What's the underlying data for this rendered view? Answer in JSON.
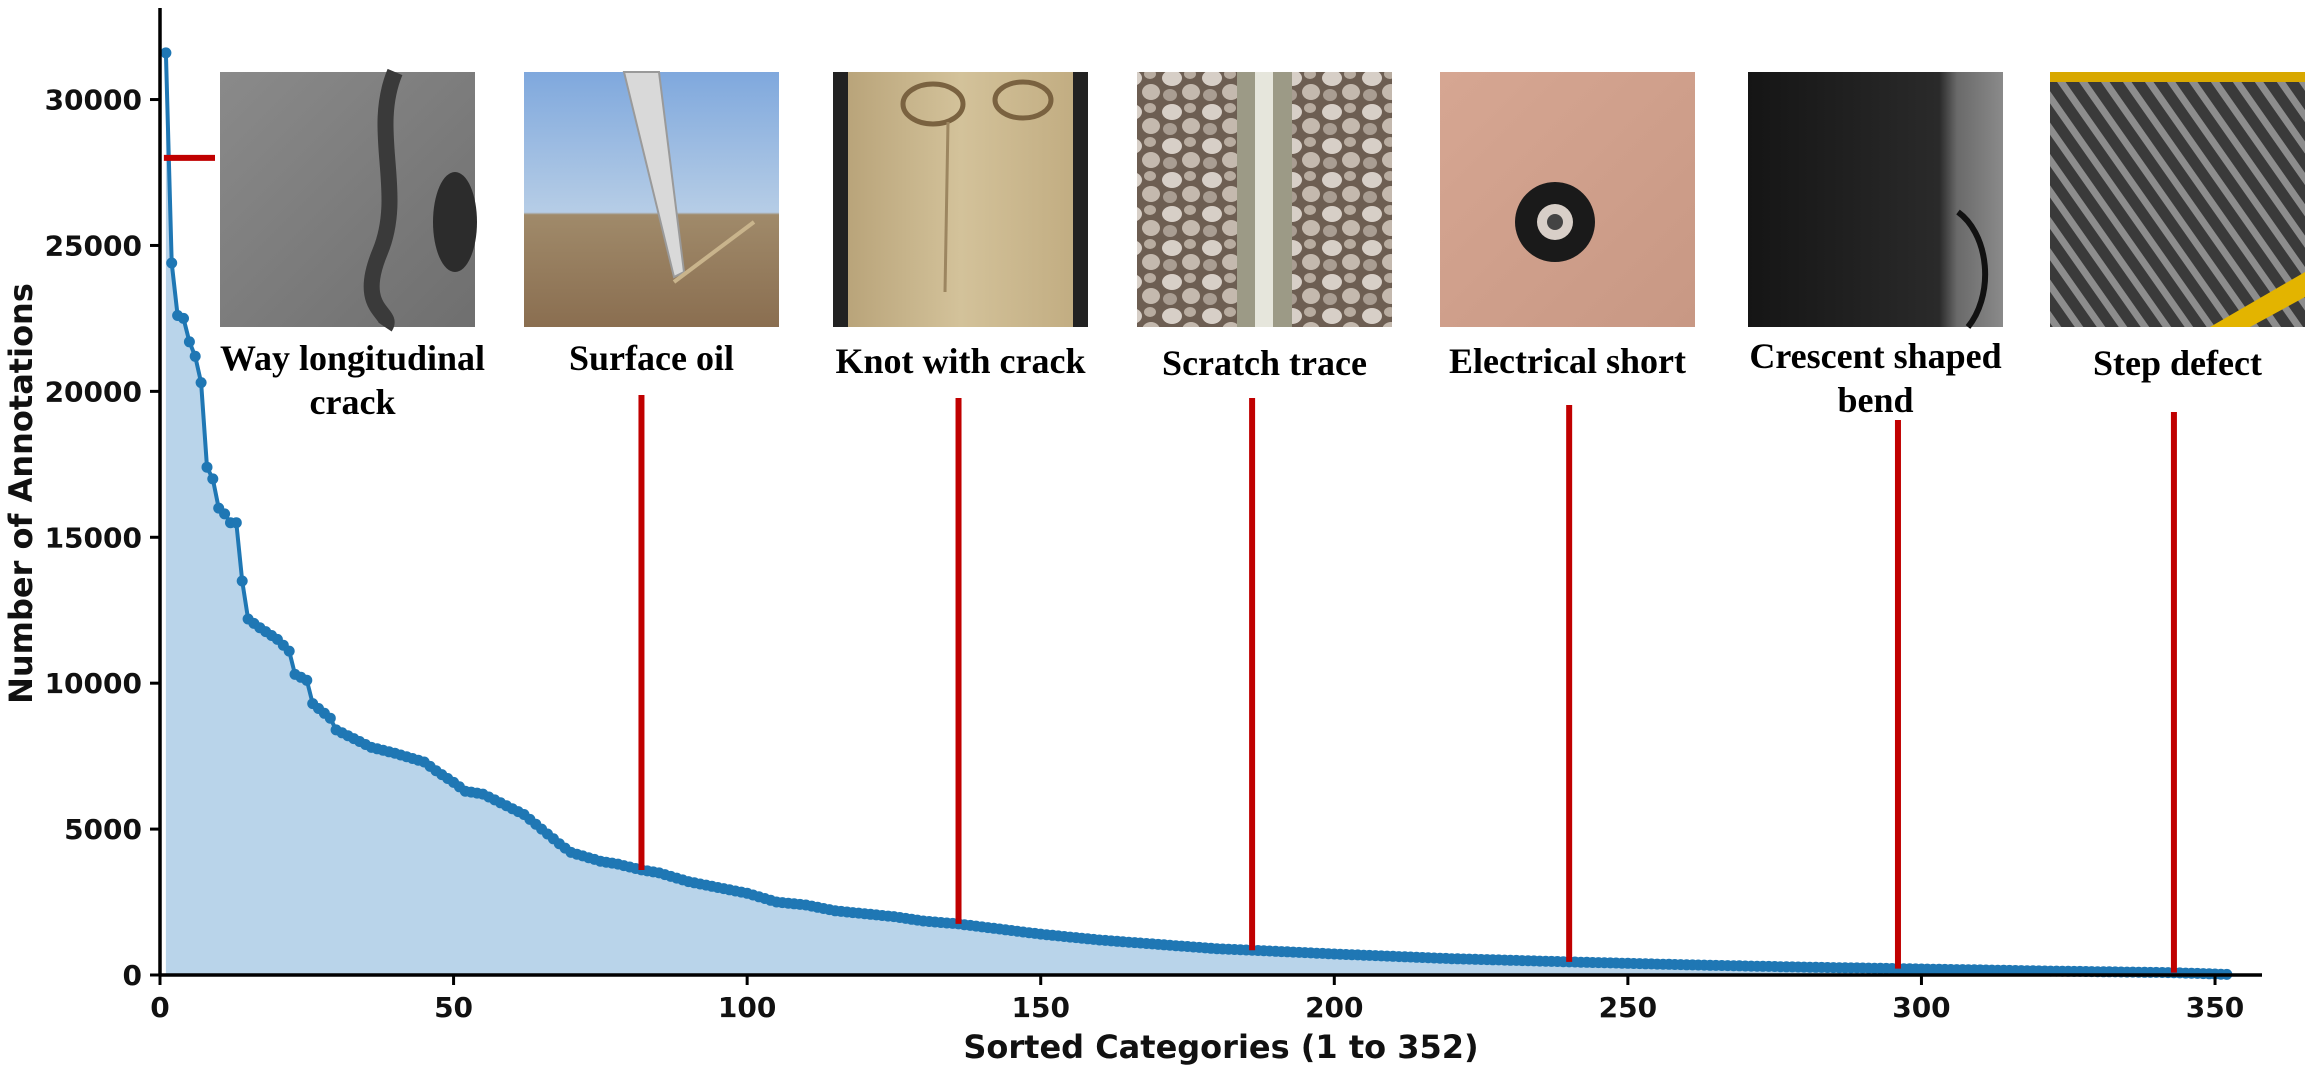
{
  "chart_data": {
    "type": "area",
    "xlabel": "Sorted Categories (1 to 352)",
    "ylabel": "Number of Annotations",
    "xlim": [
      0,
      358
    ],
    "ylim": [
      0,
      33000
    ],
    "x_ticks": [
      0,
      50,
      100,
      150,
      200,
      250,
      300,
      350
    ],
    "y_ticks": [
      0,
      5000,
      10000,
      15000,
      20000,
      25000,
      30000
    ],
    "grid": false,
    "legend": "none",
    "colors": {
      "line": "#1f77b4",
      "fill": "#b9d4ea",
      "marker": "#1f77b4",
      "annotation": "#c00000"
    },
    "series": [
      {
        "count": 352,
        "anchors": [
          [
            1,
            31600
          ],
          [
            2,
            24400
          ],
          [
            3,
            22600
          ],
          [
            4,
            22500
          ],
          [
            5,
            21700
          ],
          [
            6,
            21200
          ],
          [
            7,
            20300
          ],
          [
            8,
            17400
          ],
          [
            9,
            17000
          ],
          [
            10,
            16000
          ],
          [
            11,
            15800
          ],
          [
            12,
            15500
          ],
          [
            13,
            15500
          ],
          [
            14,
            13500
          ],
          [
            15,
            12200
          ],
          [
            17,
            11900
          ],
          [
            20,
            11500
          ],
          [
            22,
            11100
          ],
          [
            23,
            10300
          ],
          [
            25,
            10100
          ],
          [
            26,
            9300
          ],
          [
            29,
            8800
          ],
          [
            30,
            8400
          ],
          [
            33,
            8100
          ],
          [
            36,
            7800
          ],
          [
            40,
            7600
          ],
          [
            45,
            7300
          ],
          [
            47,
            7000
          ],
          [
            50,
            6600
          ],
          [
            52,
            6300
          ],
          [
            55,
            6200
          ],
          [
            58,
            5900
          ],
          [
            60,
            5700
          ],
          [
            62,
            5500
          ],
          [
            65,
            5000
          ],
          [
            68,
            4500
          ],
          [
            70,
            4200
          ],
          [
            75,
            3900
          ],
          [
            78,
            3800
          ],
          [
            82,
            3600
          ],
          [
            85,
            3500
          ],
          [
            90,
            3200
          ],
          [
            95,
            3000
          ],
          [
            100,
            2800
          ],
          [
            105,
            2500
          ],
          [
            110,
            2400
          ],
          [
            115,
            2200
          ],
          [
            120,
            2100
          ],
          [
            125,
            2000
          ],
          [
            130,
            1850
          ],
          [
            136,
            1750
          ],
          [
            140,
            1650
          ],
          [
            150,
            1400
          ],
          [
            160,
            1200
          ],
          [
            170,
            1050
          ],
          [
            180,
            900
          ],
          [
            186,
            850
          ],
          [
            200,
            720
          ],
          [
            220,
            560
          ],
          [
            240,
            450
          ],
          [
            260,
            350
          ],
          [
            280,
            270
          ],
          [
            296,
            220
          ],
          [
            320,
            140
          ],
          [
            343,
            80
          ],
          [
            352,
            20
          ]
        ]
      }
    ],
    "annotations": [
      {
        "label_lines": [
          "Way longitudinal",
          "crack"
        ],
        "x": 1,
        "y": 28000,
        "icon": "asphalt-crack-photo"
      },
      {
        "label_lines": [
          "Surface oil"
        ],
        "x": 82,
        "y": 3600,
        "icon": "wind-turbine-blade-photo"
      },
      {
        "label_lines": [
          "Knot with crack"
        ],
        "x": 136,
        "y": 1750,
        "icon": "wood-knot-photo"
      },
      {
        "label_lines": [
          "Scratch trace"
        ],
        "x": 186,
        "y": 850,
        "icon": "railway-track-photo"
      },
      {
        "label_lines": [
          "Electrical short"
        ],
        "x": 240,
        "y": 450,
        "icon": "pcb-pad-photo"
      },
      {
        "label_lines": [
          "Crescent shaped",
          "bend"
        ],
        "x": 296,
        "y": 220,
        "icon": "metal-bend-photo"
      },
      {
        "label_lines": [
          "Step defect"
        ],
        "x": 343,
        "y": 80,
        "icon": "ribbed-surface-photo"
      }
    ]
  }
}
